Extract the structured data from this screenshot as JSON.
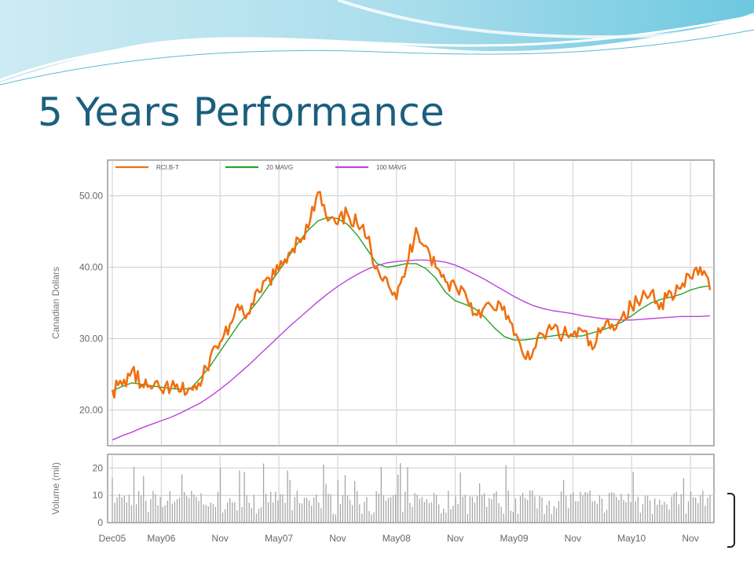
{
  "slide": {
    "title": "5 Years Performance"
  },
  "colors": {
    "title": "#1b5f7e",
    "price": "#f07010",
    "ma20": "#2aa02a",
    "ma100": "#bb44dd",
    "volume": "#a6a6a6",
    "grid": "#cfcfcf",
    "frame": "#999999"
  },
  "chart_data": {
    "type": "line",
    "title": "",
    "legend": [
      "RCI.B-T",
      "20 MAVG",
      "100 MAVG"
    ],
    "legend_position": "top-left",
    "grid": true,
    "x_tick_labels": [
      "Dec05",
      "May06",
      "Nov",
      "May07",
      "Nov",
      "May08",
      "Nov",
      "May09",
      "Nov",
      "May10",
      "Nov"
    ],
    "price_panel": {
      "ylabel": "Canadian Dollars",
      "ylim": [
        15,
        55
      ],
      "y_ticks": [
        20,
        30,
        40,
        50
      ],
      "y_tick_labels": [
        "20.00",
        "30.00",
        "40.00",
        "50.00"
      ],
      "x_months_since_dec05": [
        0,
        1,
        2,
        3,
        4,
        5,
        6,
        7,
        8,
        9,
        10,
        11,
        12,
        13,
        14,
        15,
        16,
        17,
        18,
        19,
        20,
        21,
        22,
        23,
        24,
        25,
        26,
        27,
        28,
        29,
        30,
        31,
        32,
        33,
        34,
        35,
        36,
        37,
        38,
        39,
        40,
        41,
        42,
        43,
        44,
        45,
        46,
        47,
        48,
        49,
        50,
        51,
        52,
        53,
        54,
        55,
        56,
        57,
        58,
        59,
        60,
        61
      ],
      "series": [
        {
          "name": "RCI.B-T",
          "values": [
            22.8,
            23.5,
            25.5,
            23.5,
            23.0,
            22.8,
            23.2,
            22.6,
            23.0,
            23.4,
            27.5,
            29.5,
            32.0,
            34.0,
            33.5,
            36.5,
            38.5,
            39.5,
            42.0,
            44.0,
            45.5,
            50.5,
            46.5,
            46.0,
            47.5,
            46.0,
            44.0,
            40.0,
            38.5,
            35.5,
            40.0,
            45.5,
            43.0,
            40.0,
            38.0,
            37.5,
            36.5,
            33.5,
            34.5,
            34.0,
            34.5,
            30.5,
            27.5,
            28.5,
            30.5,
            31.5,
            30.5,
            30.5,
            31.0,
            28.5,
            31.5,
            32.0,
            33.0,
            34.5,
            35.5,
            36.5,
            35.0,
            36.5,
            37.0,
            38.5,
            40.0,
            36.8
          ]
        },
        {
          "name": "20 MAVG",
          "values": [
            22.7,
            23.3,
            23.8,
            23.6,
            23.4,
            23.2,
            23.0,
            22.9,
            23.0,
            24.5,
            26.2,
            28.2,
            30.2,
            32.2,
            33.8,
            35.5,
            37.5,
            39.5,
            41.5,
            43.5,
            45.2,
            46.5,
            47.0,
            46.8,
            46.0,
            44.5,
            42.5,
            40.5,
            40.0,
            40.2,
            40.5,
            40.5,
            39.8,
            38.5,
            36.5,
            35.3,
            34.8,
            34.2,
            33.0,
            31.5,
            30.3,
            29.8,
            29.8,
            30.0,
            30.2,
            30.4,
            30.6,
            30.3,
            30.4,
            30.8,
            31.2,
            31.7,
            32.3,
            33.2,
            34.2,
            35.0,
            35.5,
            35.8,
            36.2,
            36.8,
            37.2,
            37.4
          ]
        },
        {
          "name": "100 MAVG",
          "values": [
            15.8,
            16.4,
            16.9,
            17.5,
            18.0,
            18.5,
            19.0,
            19.6,
            20.3,
            21.0,
            21.9,
            22.9,
            24.0,
            25.2,
            26.4,
            27.7,
            29.0,
            30.3,
            31.6,
            32.8,
            34.0,
            35.2,
            36.3,
            37.3,
            38.2,
            39.0,
            39.7,
            40.2,
            40.6,
            40.8,
            40.9,
            41.0,
            41.0,
            40.9,
            40.7,
            40.3,
            39.7,
            39.0,
            38.3,
            37.5,
            36.7,
            35.9,
            35.2,
            34.6,
            34.2,
            33.9,
            33.7,
            33.5,
            33.2,
            33.0,
            32.8,
            32.7,
            32.6,
            32.6,
            32.7,
            32.8,
            32.9,
            33.0,
            33.1,
            33.1,
            33.1,
            33.2
          ]
        }
      ]
    },
    "volume_panel": {
      "ylabel": "Volume (mil)",
      "ylim": [
        0,
        25
      ],
      "y_ticks": [
        0,
        10,
        20
      ],
      "y_tick_labels": [
        "0",
        "10",
        "20"
      ],
      "type": "bar"
    }
  }
}
